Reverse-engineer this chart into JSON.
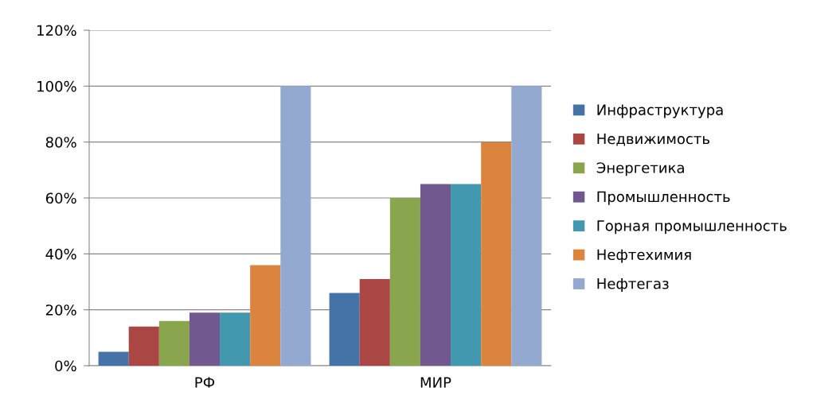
{
  "chart_data": {
    "type": "bar",
    "categories": [
      "РФ",
      "МИР"
    ],
    "series": [
      {
        "name": "Инфраструктура",
        "color": "#4572a7",
        "values": [
          5,
          26
        ]
      },
      {
        "name": "Недвижимость",
        "color": "#aa4643",
        "values": [
          14,
          31
        ]
      },
      {
        "name": "Энергетика",
        "color": "#89a54e",
        "values": [
          16,
          60
        ]
      },
      {
        "name": "Промышленность",
        "color": "#71588f",
        "values": [
          19,
          65
        ]
      },
      {
        "name": "Горная промышленность",
        "color": "#4198af",
        "values": [
          19,
          65
        ]
      },
      {
        "name": "Нефтехимия",
        "color": "#db843d",
        "values": [
          36,
          80
        ]
      },
      {
        "name": "Нефтегаз",
        "color": "#93a9cf",
        "values": [
          100,
          100
        ]
      }
    ],
    "ylim": [
      0,
      120
    ],
    "yticks": [
      {
        "value": 0,
        "label": "0%"
      },
      {
        "value": 20,
        "label": "20%"
      },
      {
        "value": 40,
        "label": "40%"
      },
      {
        "value": 60,
        "label": "60%"
      },
      {
        "value": 80,
        "label": "80%"
      },
      {
        "value": 100,
        "label": "100%"
      },
      {
        "value": 120,
        "label": "120%"
      }
    ],
    "grid": "y",
    "legend": "right"
  }
}
